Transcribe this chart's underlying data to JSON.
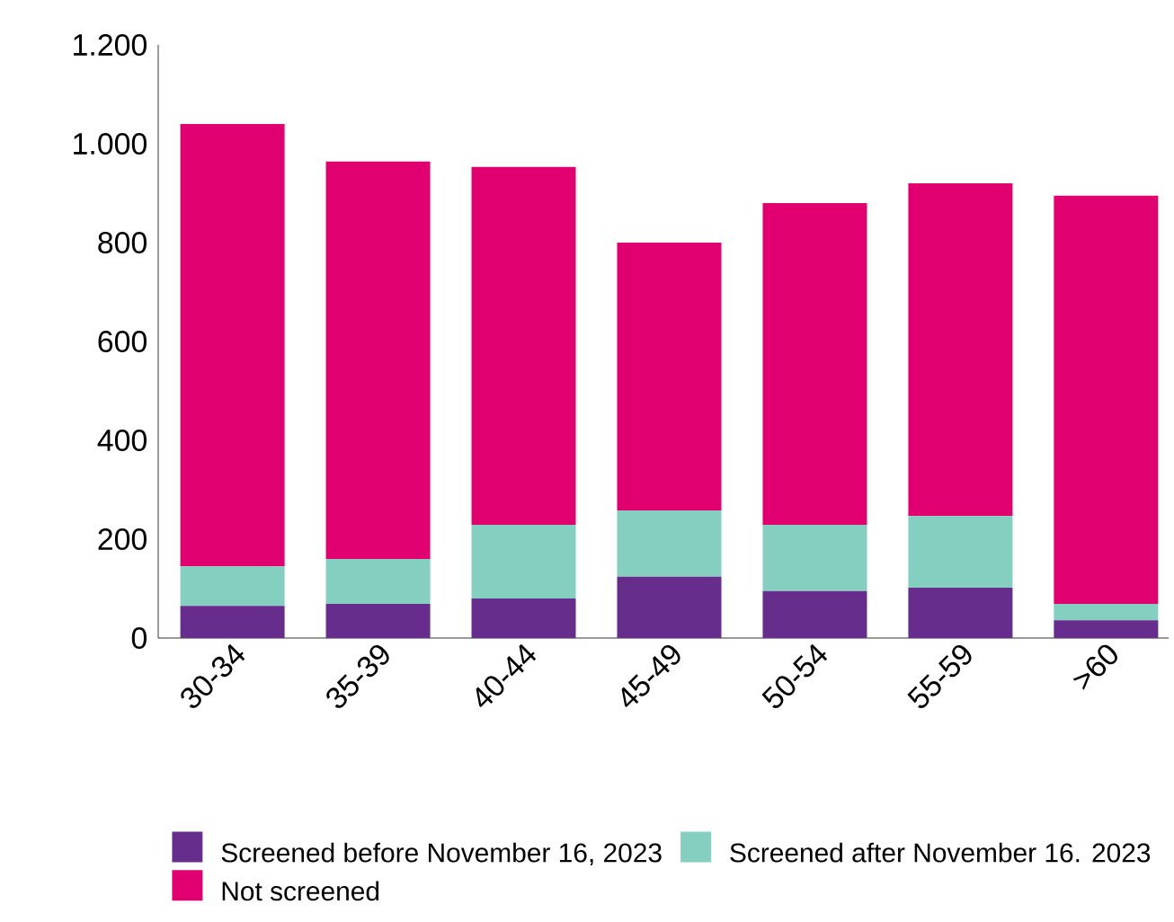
{
  "chart_data": {
    "type": "bar",
    "stacked": true,
    "categories": [
      "30-34",
      "35-39",
      "40-44",
      "45-49",
      "50-54",
      "55-59",
      ">60"
    ],
    "series": [
      {
        "name": "Screened before November 16, 2023",
        "color": "#662d8c",
        "values": [
          65,
          69,
          80,
          124,
          95,
          102,
          36
        ]
      },
      {
        "name": "Screened after November 16. 2023",
        "color": "#85cfc0",
        "values": [
          80,
          91,
          149,
          134,
          134,
          145,
          33
        ]
      },
      {
        "name": "Not screened",
        "color": "#e0006f",
        "values": [
          895,
          804,
          724,
          542,
          651,
          673,
          826
        ]
      }
    ],
    "ylim": [
      0,
      1200
    ],
    "yticks": [
      0,
      200,
      400,
      600,
      800,
      {
        "value": 1000,
        "label": "1.000"
      },
      {
        "value": 1200,
        "label": "1.200"
      }
    ],
    "legend": "bottom",
    "grid": false
  }
}
